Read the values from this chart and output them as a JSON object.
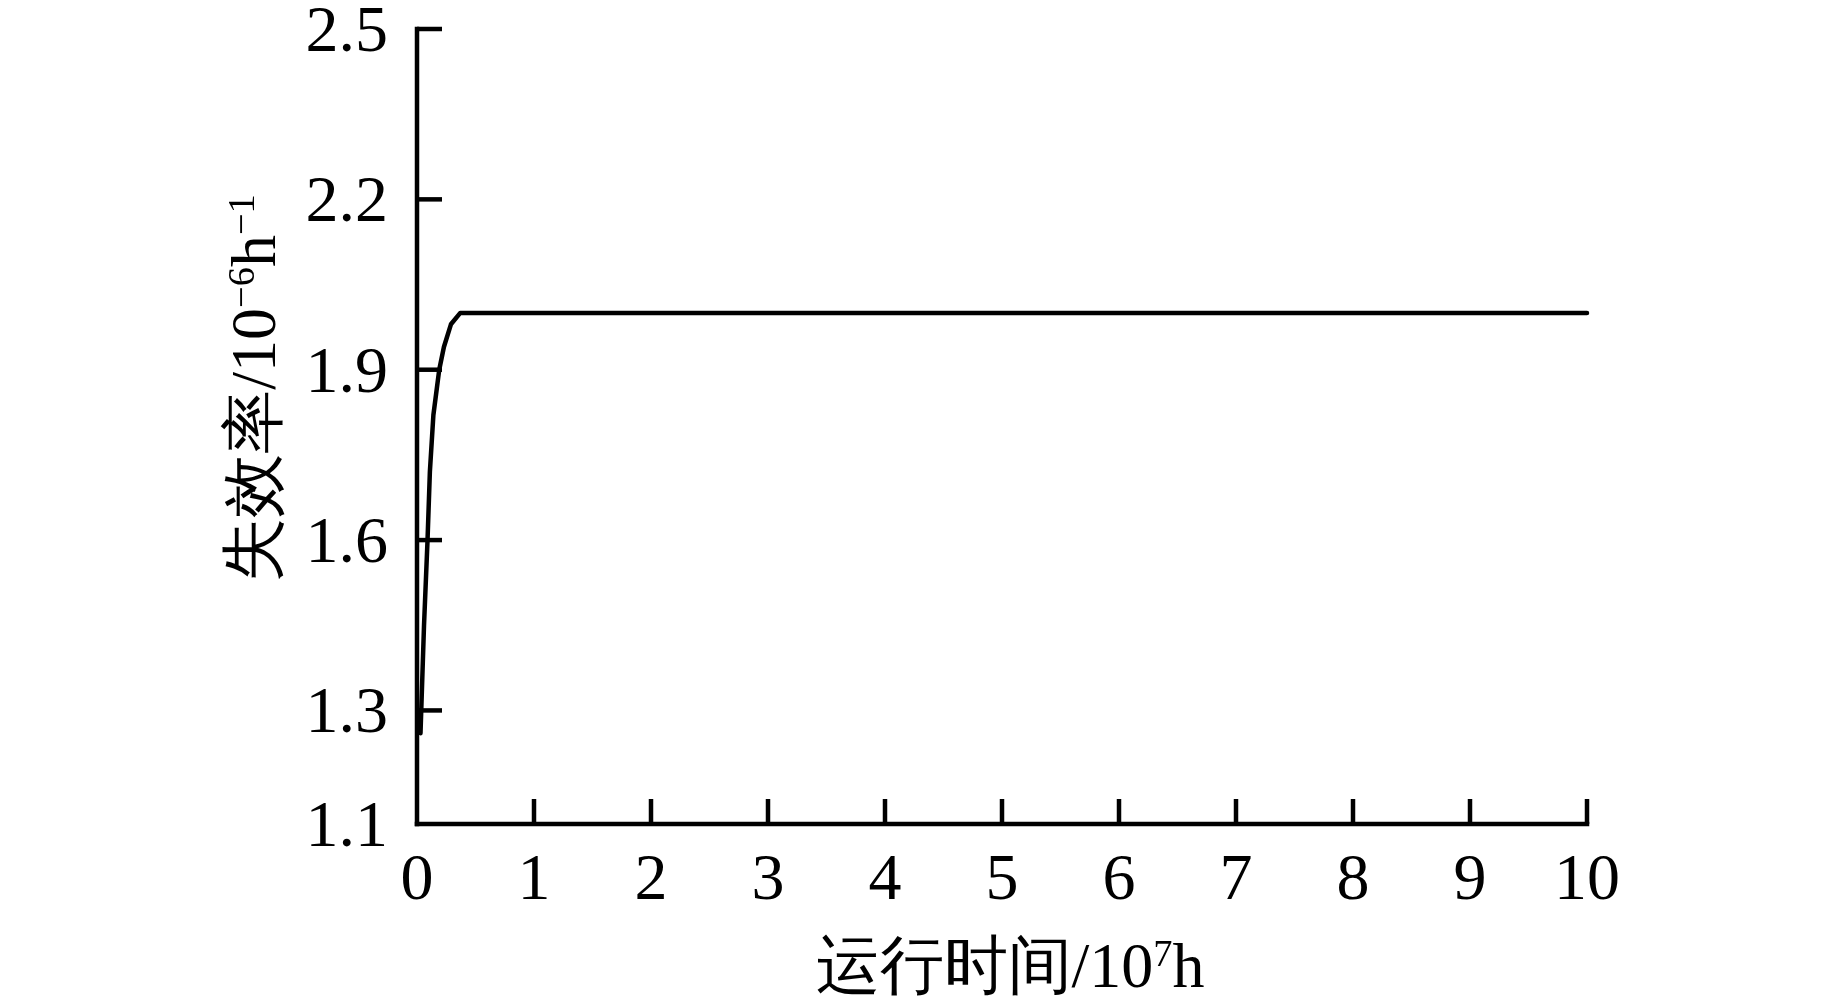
{
  "chart_data": {
    "type": "line",
    "xlabel": "运行时间/10$^{7}$h",
    "ylabel": "失效率/10$^{−6}$h$^{−1}$",
    "x": [
      0.03,
      0.06,
      0.09,
      0.11,
      0.14,
      0.19,
      0.23,
      0.29,
      0.37,
      0.51,
      0.63,
      1,
      2,
      3,
      4,
      5,
      6,
      7,
      8,
      9,
      10
    ],
    "values": [
      1.26,
      1.45,
      1.6,
      1.72,
      1.82,
      1.9,
      1.94,
      1.98,
      2.0,
      2.0,
      2.0,
      2.0,
      2.0,
      2.0,
      2.0,
      2.0,
      2.0,
      2.0,
      2.0,
      2.0,
      2.0
    ],
    "color": "#000000",
    "xlim": [
      0,
      10
    ],
    "ylim": [
      1.1,
      2.5
    ],
    "xticks": [
      0,
      1,
      2,
      3,
      4,
      5,
      6,
      7,
      8,
      9,
      10
    ],
    "yticks": [
      1.1,
      1.3,
      1.6,
      1.9,
      2.2,
      2.5
    ]
  }
}
